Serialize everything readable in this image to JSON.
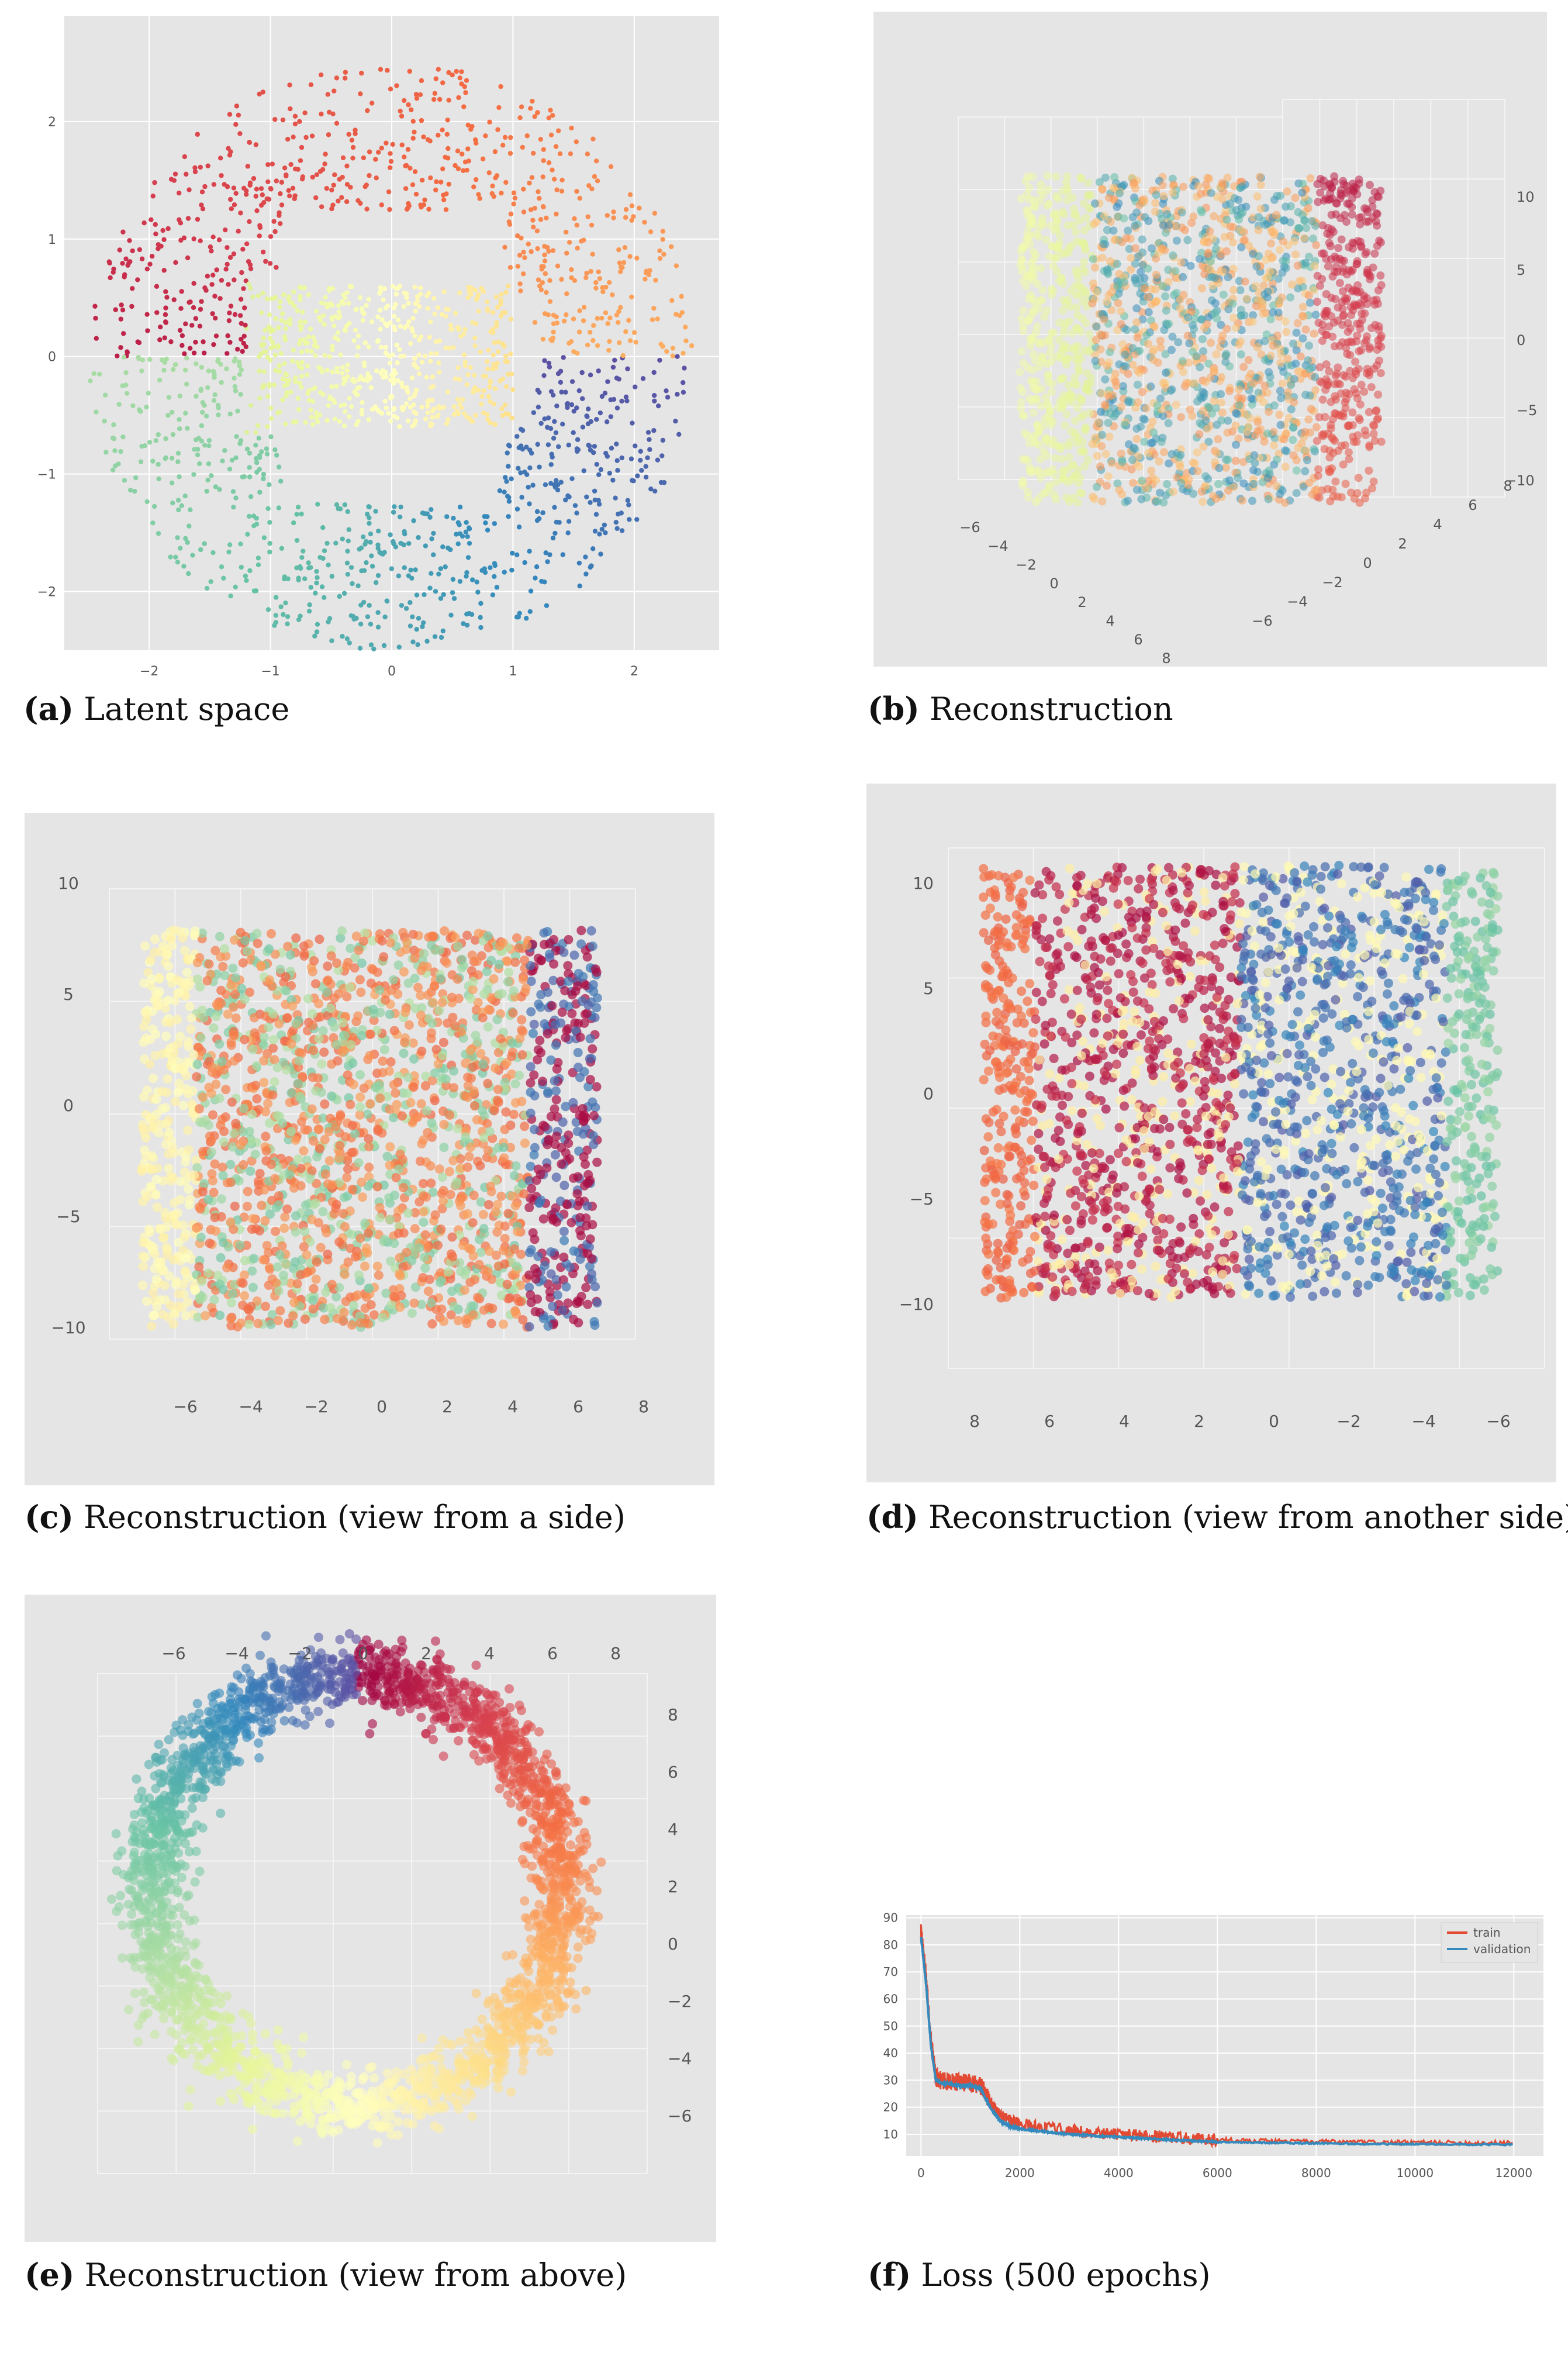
{
  "figure": {
    "panels": [
      {
        "id": "a",
        "letter": "(a)",
        "caption": "Latent space"
      },
      {
        "id": "b",
        "letter": "(b)",
        "caption": "Reconstruction"
      },
      {
        "id": "c",
        "letter": "(c)",
        "caption": "Reconstruction (view from a side)"
      },
      {
        "id": "d",
        "letter": "(d)",
        "caption": "Reconstruction (view from another side)"
      },
      {
        "id": "e",
        "letter": "(e)",
        "caption": "Reconstruction (view from above)"
      },
      {
        "id": "f",
        "letter": "(f)",
        "caption": "Loss (500 epochs)"
      }
    ]
  },
  "chart_data": [
    {
      "id": "a",
      "type": "scatter",
      "title": "Latent space",
      "description": "2D latent embedding shaped as an open ring (C-shape opening toward center), colored by Spectral colormap",
      "xticks": [
        -2,
        -1,
        0,
        1,
        2
      ],
      "yticks": [
        -2,
        -1,
        0,
        1,
        2
      ],
      "xlim": [
        -2.7,
        2.7
      ],
      "ylim": [
        -2.5,
        2.9
      ],
      "grid": true,
      "colormap": "Spectral",
      "n_points": 2000
    },
    {
      "id": "b",
      "type": "scatter3d",
      "title": "Reconstruction",
      "description": "3D reconstruction of a cylinder-like surface, perspective view",
      "x_ticks": [
        -6,
        -4,
        -2,
        0,
        2,
        4,
        6,
        8
      ],
      "y_ticks": [
        -6,
        -4,
        -2,
        0,
        2,
        4,
        6,
        8
      ],
      "z_ticks": [
        -10,
        -5,
        0,
        5,
        10
      ],
      "colormap": "Spectral"
    },
    {
      "id": "c",
      "type": "scatter3d",
      "title": "Reconstruction (view from a side)",
      "x_ticks": [
        -6,
        -4,
        -2,
        0,
        2,
        4,
        6,
        8
      ],
      "z_ticks": [
        -10,
        -5,
        0,
        5,
        10
      ],
      "colormap": "Spectral"
    },
    {
      "id": "d",
      "type": "scatter3d",
      "title": "Reconstruction (view from another side)",
      "x_ticks": [
        8,
        6,
        4,
        2,
        0,
        -2,
        -4,
        -6
      ],
      "z_ticks": [
        -10,
        -5,
        0,
        5,
        10
      ],
      "colormap": "Spectral"
    },
    {
      "id": "e",
      "type": "scatter3d",
      "title": "Reconstruction (view from above)",
      "x_ticks": [
        -6,
        -4,
        -2,
        0,
        2,
        4,
        6,
        8
      ],
      "y_ticks": [
        8,
        6,
        4,
        2,
        0,
        -2,
        -4,
        -6
      ],
      "description": "Ring of radius ~7 seen from above, colored by Spectral colormap around the circumference",
      "colormap": "Spectral"
    },
    {
      "id": "f",
      "type": "line",
      "title": "Loss (500 epochs)",
      "xlabel": "",
      "ylabel": "",
      "xticks": [
        0,
        2000,
        4000,
        6000,
        8000,
        10000,
        12000
      ],
      "yticks": [
        10,
        20,
        30,
        40,
        50,
        60,
        70,
        80,
        90
      ],
      "xlim": [
        -300,
        12600
      ],
      "ylim": [
        2,
        91
      ],
      "grid": true,
      "legend": {
        "position": "upper right",
        "entries": [
          "train",
          "validation"
        ]
      },
      "x": [
        0,
        100,
        200,
        300,
        400,
        600,
        800,
        1000,
        1200,
        1400,
        1600,
        1800,
        2000,
        2500,
        3000,
        3500,
        4000,
        4500,
        5000,
        5500,
        6000,
        7000,
        8000,
        9000,
        10000,
        11000,
        12000
      ],
      "series": [
        {
          "name": "train",
          "color": "#e24a33",
          "values": [
            85,
            68,
            45,
            31,
            30,
            29.5,
            29,
            29,
            28,
            22,
            17,
            15,
            14,
            12.5,
            11.5,
            10.5,
            10,
            9.5,
            9,
            8.5,
            8,
            7.6,
            7.3,
            7.1,
            7,
            6.9,
            6.8
          ]
        },
        {
          "name": "validation",
          "color": "#348abd",
          "values": [
            83,
            66,
            43,
            30,
            29,
            28.5,
            28,
            28,
            27,
            20,
            15,
            13,
            12,
            11,
            10,
            9.5,
            9,
            8.5,
            8,
            7.6,
            7.2,
            6.9,
            6.7,
            6.5,
            6.4,
            6.3,
            6.2
          ]
        }
      ]
    }
  ]
}
